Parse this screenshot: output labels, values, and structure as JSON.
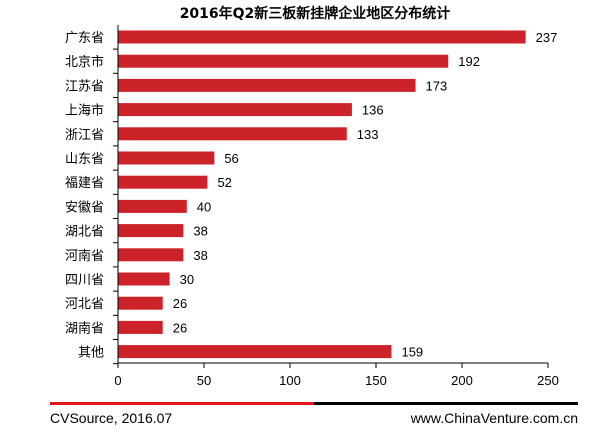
{
  "chart_data": {
    "type": "bar",
    "orientation": "horizontal",
    "title": "2016年Q2新三板新挂牌企业地区分布统计",
    "categories": [
      "广东省",
      "北京市",
      "江苏省",
      "上海市",
      "浙江省",
      "山东省",
      "福建省",
      "安徽省",
      "湖北省",
      "河南省",
      "四川省",
      "河北省",
      "湖南省",
      "其他"
    ],
    "values": [
      237,
      192,
      173,
      136,
      133,
      56,
      52,
      40,
      38,
      38,
      30,
      26,
      26,
      159
    ],
    "xlim": [
      0,
      250
    ],
    "xticks": [
      0,
      50,
      100,
      150,
      200,
      250
    ],
    "bar_color": "#cc2229",
    "grid": false
  },
  "footer": {
    "source": "CVSource, 2016.07",
    "website": "www.ChinaVenture.com.cn",
    "accent_color": "#e8141c"
  }
}
